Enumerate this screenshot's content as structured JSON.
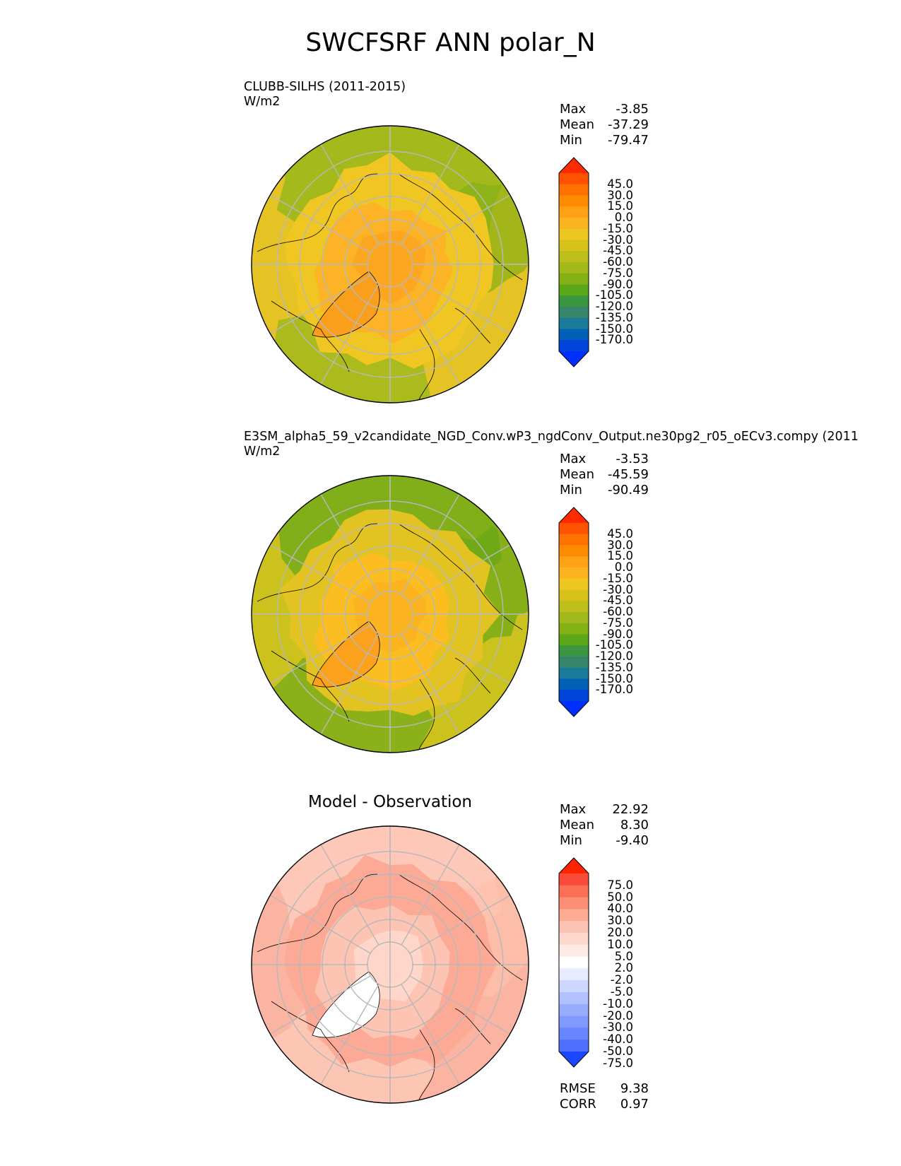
{
  "page": {
    "title": "SWCFSRF ANN polar_N"
  },
  "panels": [
    {
      "title": "CLUBB-SILHS (2011-2015)",
      "units": "W/m2",
      "stats": [
        {
          "label": "Max",
          "value": "-3.85"
        },
        {
          "label": "Mean",
          "value": "-37.29"
        },
        {
          "label": "Min",
          "value": "-79.47"
        }
      ]
    },
    {
      "title": "E3SM_alpha5_59_v2candidate_NGD_Conv.wP3_ngdConv_Output.ne30pg2_r05_oECv3.compy (2011",
      "units": "W/m2",
      "stats": [
        {
          "label": "Max",
          "value": "-3.53"
        },
        {
          "label": "Mean",
          "value": "-45.59"
        },
        {
          "label": "Min",
          "value": "-90.49"
        }
      ]
    },
    {
      "title": "Model - Observation",
      "stats": [
        {
          "label": "Max",
          "value": "22.92"
        },
        {
          "label": "Mean",
          "value": "8.30"
        },
        {
          "label": "Min",
          "value": "-9.40"
        }
      ],
      "metrics": [
        {
          "label": "RMSE",
          "value": "9.38"
        },
        {
          "label": "CORR",
          "value": "0.97"
        }
      ]
    }
  ],
  "chart_data": [
    {
      "type": "heatmap",
      "projection": "north polar stereographic",
      "title": "CLUBB-SILHS (2011-2015)",
      "units": "W/m2",
      "stats": {
        "max": -3.85,
        "mean": -37.29,
        "min": -79.47
      },
      "colorbar_levels": [
        "45.0",
        "30.0",
        "15.0",
        "0.0",
        "-15.0",
        "-30.0",
        "-45.0",
        "-60.0",
        "-75.0",
        "-90.0",
        "-105.0",
        "-120.0",
        "-135.0",
        "-150.0",
        "-170.0"
      ],
      "colorbar_colors": [
        "#ff2a00",
        "#ff5200",
        "#ff7200",
        "#ff8c00",
        "#ffa114",
        "#fbb41f",
        "#edc620",
        "#d6c21b",
        "#bdbd1c",
        "#a2b91c",
        "#84b216",
        "#5ca717",
        "#3a9640",
        "#35866a",
        "#1b7b9b",
        "#0061b7",
        "#0044d9",
        "#0030ff"
      ],
      "grid": true
    },
    {
      "type": "heatmap",
      "projection": "north polar stereographic",
      "title": "E3SM_alpha5_59_v2candidate_NGD_Conv.wP3_ngdConv_Output.ne30pg2_r05_oECv3.compy (2011",
      "units": "W/m2",
      "stats": {
        "max": -3.53,
        "mean": -45.59,
        "min": -90.49
      },
      "colorbar_levels": [
        "45.0",
        "30.0",
        "15.0",
        "0.0",
        "-15.0",
        "-30.0",
        "-45.0",
        "-60.0",
        "-75.0",
        "-90.0",
        "-105.0",
        "-120.0",
        "-135.0",
        "-150.0",
        "-170.0"
      ],
      "colorbar_colors": [
        "#ff2a00",
        "#ff5200",
        "#ff7200",
        "#ff8c00",
        "#ffa114",
        "#fbb41f",
        "#edc620",
        "#d6c21b",
        "#bdbd1c",
        "#a2b91c",
        "#84b216",
        "#5ca717",
        "#3a9640",
        "#35866a",
        "#1b7b9b",
        "#0061b7",
        "#0044d9",
        "#0030ff"
      ],
      "grid": true
    },
    {
      "type": "heatmap",
      "projection": "north polar stereographic",
      "title": "Model - Observation",
      "stats": {
        "max": 22.92,
        "mean": 8.3,
        "min": -9.4
      },
      "metrics": {
        "rmse": 9.38,
        "corr": 0.97
      },
      "colorbar_levels": [
        "75.0",
        "50.0",
        "40.0",
        "30.0",
        "20.0",
        "10.0",
        "5.0",
        "2.0",
        "-2.0",
        "-5.0",
        "-10.0",
        "-20.0",
        "-30.0",
        "-40.0",
        "-50.0",
        "-75.0"
      ],
      "colorbar_colors": [
        "#ff2400",
        "#fb4a3a",
        "#fa6f55",
        "#fb8e74",
        "#fcab95",
        "#fdc3b3",
        "#fed8cd",
        "#feebe5",
        "#ffffff",
        "#e6ebff",
        "#ccd6ff",
        "#b3c2ff",
        "#99adff",
        "#8099ff",
        "#6685ff",
        "#4d70ff",
        "#1a47ff"
      ],
      "grid": true
    }
  ]
}
